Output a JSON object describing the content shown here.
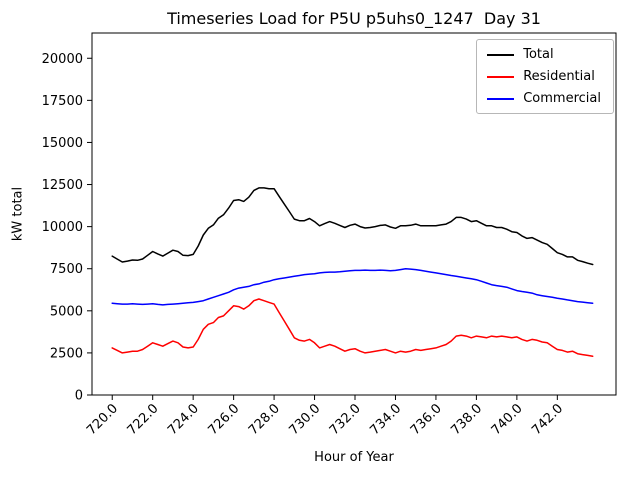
{
  "figure": {
    "title": "Timeseries Load for P5U p5uhs0_1247  Day 31",
    "xlabel": "Hour of Year",
    "ylabel": "kW total"
  },
  "legend": {
    "position": "upper right",
    "entries": [
      {
        "label": "Total",
        "color": "#000000"
      },
      {
        "label": "Residential",
        "color": "#ff0000"
      },
      {
        "label": "Commercial",
        "color": "#0000ff"
      }
    ]
  },
  "chart_data": {
    "type": "line",
    "title": "Timeseries Load for P5U p5uhs0_1247  Day 31",
    "xlabel": "Hour of Year",
    "ylabel": "kW total",
    "grid": false,
    "legend_position": "upper right",
    "xlim": [
      719.0,
      744.9
    ],
    "ylim": [
      0,
      21500
    ],
    "x_ticks": [
      720,
      722,
      724,
      726,
      728,
      730,
      732,
      734,
      736,
      738,
      740,
      742
    ],
    "x_tick_labels": [
      "720.0",
      "722.0",
      "724.0",
      "726.0",
      "728.0",
      "730.0",
      "732.0",
      "734.0",
      "736.0",
      "738.0",
      "740.0",
      "742.0"
    ],
    "y_ticks": [
      0,
      2500,
      5000,
      7500,
      10000,
      12500,
      15000,
      17500,
      20000
    ],
    "y_tick_labels": [
      "0",
      "2500",
      "5000",
      "7500",
      "10000",
      "12500",
      "15000",
      "17500",
      "20000"
    ],
    "x": [
      720.0,
      720.25,
      720.5,
      720.75,
      721.0,
      721.25,
      721.5,
      721.75,
      722.0,
      722.25,
      722.5,
      722.75,
      723.0,
      723.25,
      723.5,
      723.75,
      724.0,
      724.25,
      724.5,
      724.75,
      725.0,
      725.25,
      725.5,
      725.75,
      726.0,
      726.25,
      726.5,
      726.75,
      727.0,
      727.25,
      727.5,
      727.75,
      728.0,
      728.25,
      728.5,
      728.75,
      729.0,
      729.25,
      729.5,
      729.75,
      730.0,
      730.25,
      730.5,
      730.75,
      731.0,
      731.25,
      731.5,
      731.75,
      732.0,
      732.25,
      732.5,
      732.75,
      733.0,
      733.25,
      733.5,
      733.75,
      734.0,
      734.25,
      734.5,
      734.75,
      735.0,
      735.25,
      735.5,
      735.75,
      736.0,
      736.25,
      736.5,
      736.75,
      737.0,
      737.25,
      737.5,
      737.75,
      738.0,
      738.25,
      738.5,
      738.75,
      739.0,
      739.25,
      739.5,
      739.75,
      740.0,
      740.25,
      740.5,
      740.75,
      741.0,
      741.25,
      741.5,
      741.75,
      742.0,
      742.25,
      742.5,
      742.75,
      743.0,
      743.25,
      743.5,
      743.75
    ],
    "series": [
      {
        "name": "Total",
        "color": "#000000",
        "values": [
          8250,
          8070,
          7900,
          7950,
          8020,
          8000,
          8080,
          8300,
          8520,
          8380,
          8250,
          8430,
          8600,
          8520,
          8300,
          8280,
          8350,
          8850,
          9500,
          9900,
          10100,
          10500,
          10700,
          11100,
          11550,
          11600,
          11500,
          11750,
          12150,
          12300,
          12300,
          12250,
          12250,
          11800,
          11350,
          10900,
          10450,
          10350,
          10350,
          10480,
          10300,
          10050,
          10180,
          10300,
          10200,
          10070,
          9950,
          10080,
          10150,
          10000,
          9920,
          9950,
          10000,
          10070,
          10100,
          9980,
          9900,
          10050,
          10050,
          10080,
          10150,
          10050,
          10050,
          10050,
          10050,
          10100,
          10150,
          10300,
          10550,
          10550,
          10450,
          10300,
          10350,
          10200,
          10050,
          10050,
          9950,
          9950,
          9850,
          9700,
          9650,
          9450,
          9300,
          9350,
          9200,
          9050,
          8950,
          8700,
          8450,
          8350,
          8200,
          8200,
          8000,
          7920,
          7830,
          7750
        ]
      },
      {
        "name": "Residential",
        "color": "#ff0000",
        "values": [
          2800,
          2650,
          2500,
          2550,
          2600,
          2600,
          2700,
          2900,
          3100,
          3000,
          2900,
          3050,
          3200,
          3100,
          2850,
          2800,
          2850,
          3300,
          3900,
          4200,
          4300,
          4600,
          4700,
          5000,
          5300,
          5250,
          5100,
          5300,
          5600,
          5700,
          5600,
          5500,
          5400,
          4900,
          4400,
          3900,
          3400,
          3250,
          3200,
          3300,
          3100,
          2800,
          2900,
          3000,
          2900,
          2750,
          2600,
          2700,
          2750,
          2600,
          2500,
          2550,
          2600,
          2650,
          2700,
          2600,
          2500,
          2600,
          2550,
          2600,
          2700,
          2650,
          2700,
          2750,
          2800,
          2900,
          3000,
          3200,
          3500,
          3550,
          3500,
          3400,
          3500,
          3450,
          3400,
          3500,
          3450,
          3500,
          3450,
          3400,
          3450,
          3300,
          3200,
          3300,
          3250,
          3150,
          3100,
          2900,
          2700,
          2650,
          2550,
          2600,
          2450,
          2400,
          2350,
          2300
        ]
      },
      {
        "name": "Commercial",
        "color": "#0000ff",
        "values": [
          5450,
          5420,
          5400,
          5400,
          5420,
          5400,
          5380,
          5400,
          5420,
          5380,
          5350,
          5380,
          5400,
          5420,
          5450,
          5480,
          5500,
          5550,
          5600,
          5700,
          5800,
          5900,
          6000,
          6100,
          6250,
          6350,
          6400,
          6450,
          6550,
          6600,
          6700,
          6750,
          6850,
          6900,
          6950,
          7000,
          7050,
          7100,
          7150,
          7180,
          7200,
          7250,
          7280,
          7300,
          7300,
          7320,
          7350,
          7380,
          7400,
          7400,
          7420,
          7400,
          7400,
          7420,
          7400,
          7380,
          7400,
          7450,
          7500,
          7480,
          7450,
          7400,
          7350,
          7300,
          7250,
          7200,
          7150,
          7100,
          7050,
          7000,
          6950,
          6900,
          6850,
          6750,
          6650,
          6550,
          6500,
          6450,
          6400,
          6300,
          6200,
          6150,
          6100,
          6050,
          5950,
          5900,
          5850,
          5800,
          5750,
          5700,
          5650,
          5600,
          5550,
          5520,
          5480,
          5450
        ]
      }
    ]
  }
}
